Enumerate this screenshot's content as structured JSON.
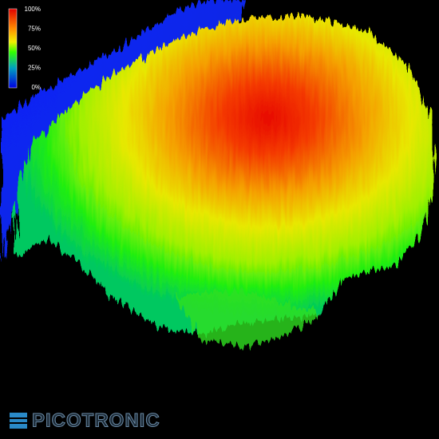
{
  "legend": {
    "labels": [
      "100%",
      "75%",
      "50%",
      "25%",
      "0%"
    ]
  },
  "brand": "PICOTRONIC"
}
